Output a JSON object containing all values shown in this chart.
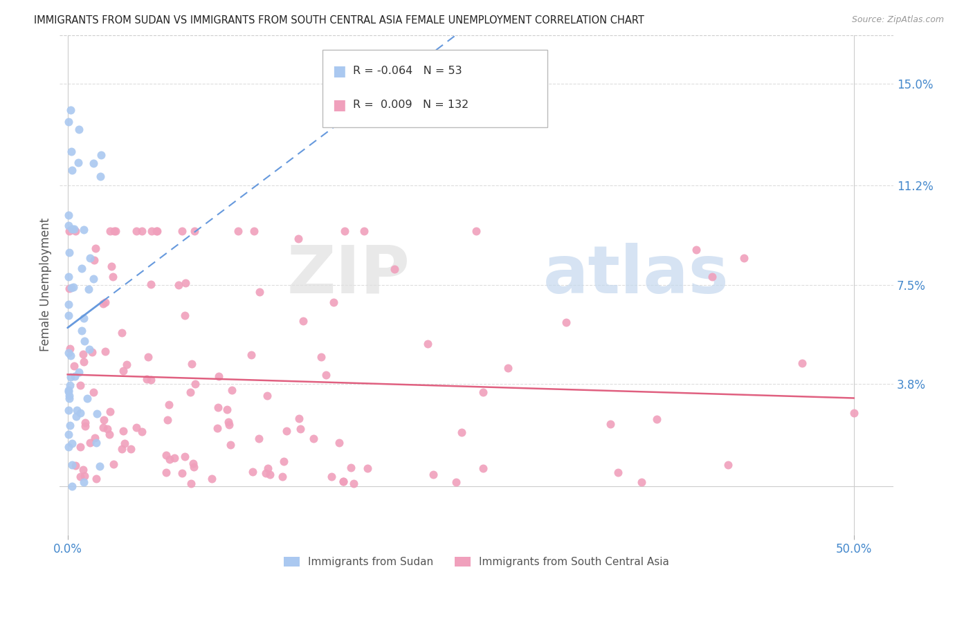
{
  "title": "IMMIGRANTS FROM SUDAN VS IMMIGRANTS FROM SOUTH CENTRAL ASIA FEMALE UNEMPLOYMENT CORRELATION CHART",
  "source": "Source: ZipAtlas.com",
  "ylabel": "Female Unemployment",
  "ytick_labels": [
    "15.0%",
    "11.2%",
    "7.5%",
    "3.8%"
  ],
  "ytick_values": [
    0.15,
    0.112,
    0.075,
    0.038
  ],
  "ylim": [
    -0.018,
    0.168
  ],
  "xlim": [
    -0.005,
    0.525
  ],
  "legend_sudan_R": "-0.064",
  "legend_sudan_N": "53",
  "legend_sca_R": "0.009",
  "legend_sca_N": "132",
  "sudan_color": "#aac8f0",
  "sca_color": "#f0a0bc",
  "sudan_trend_color": "#6699dd",
  "sca_trend_color": "#e06080",
  "sudan_seed": 42,
  "sca_seed": 99
}
